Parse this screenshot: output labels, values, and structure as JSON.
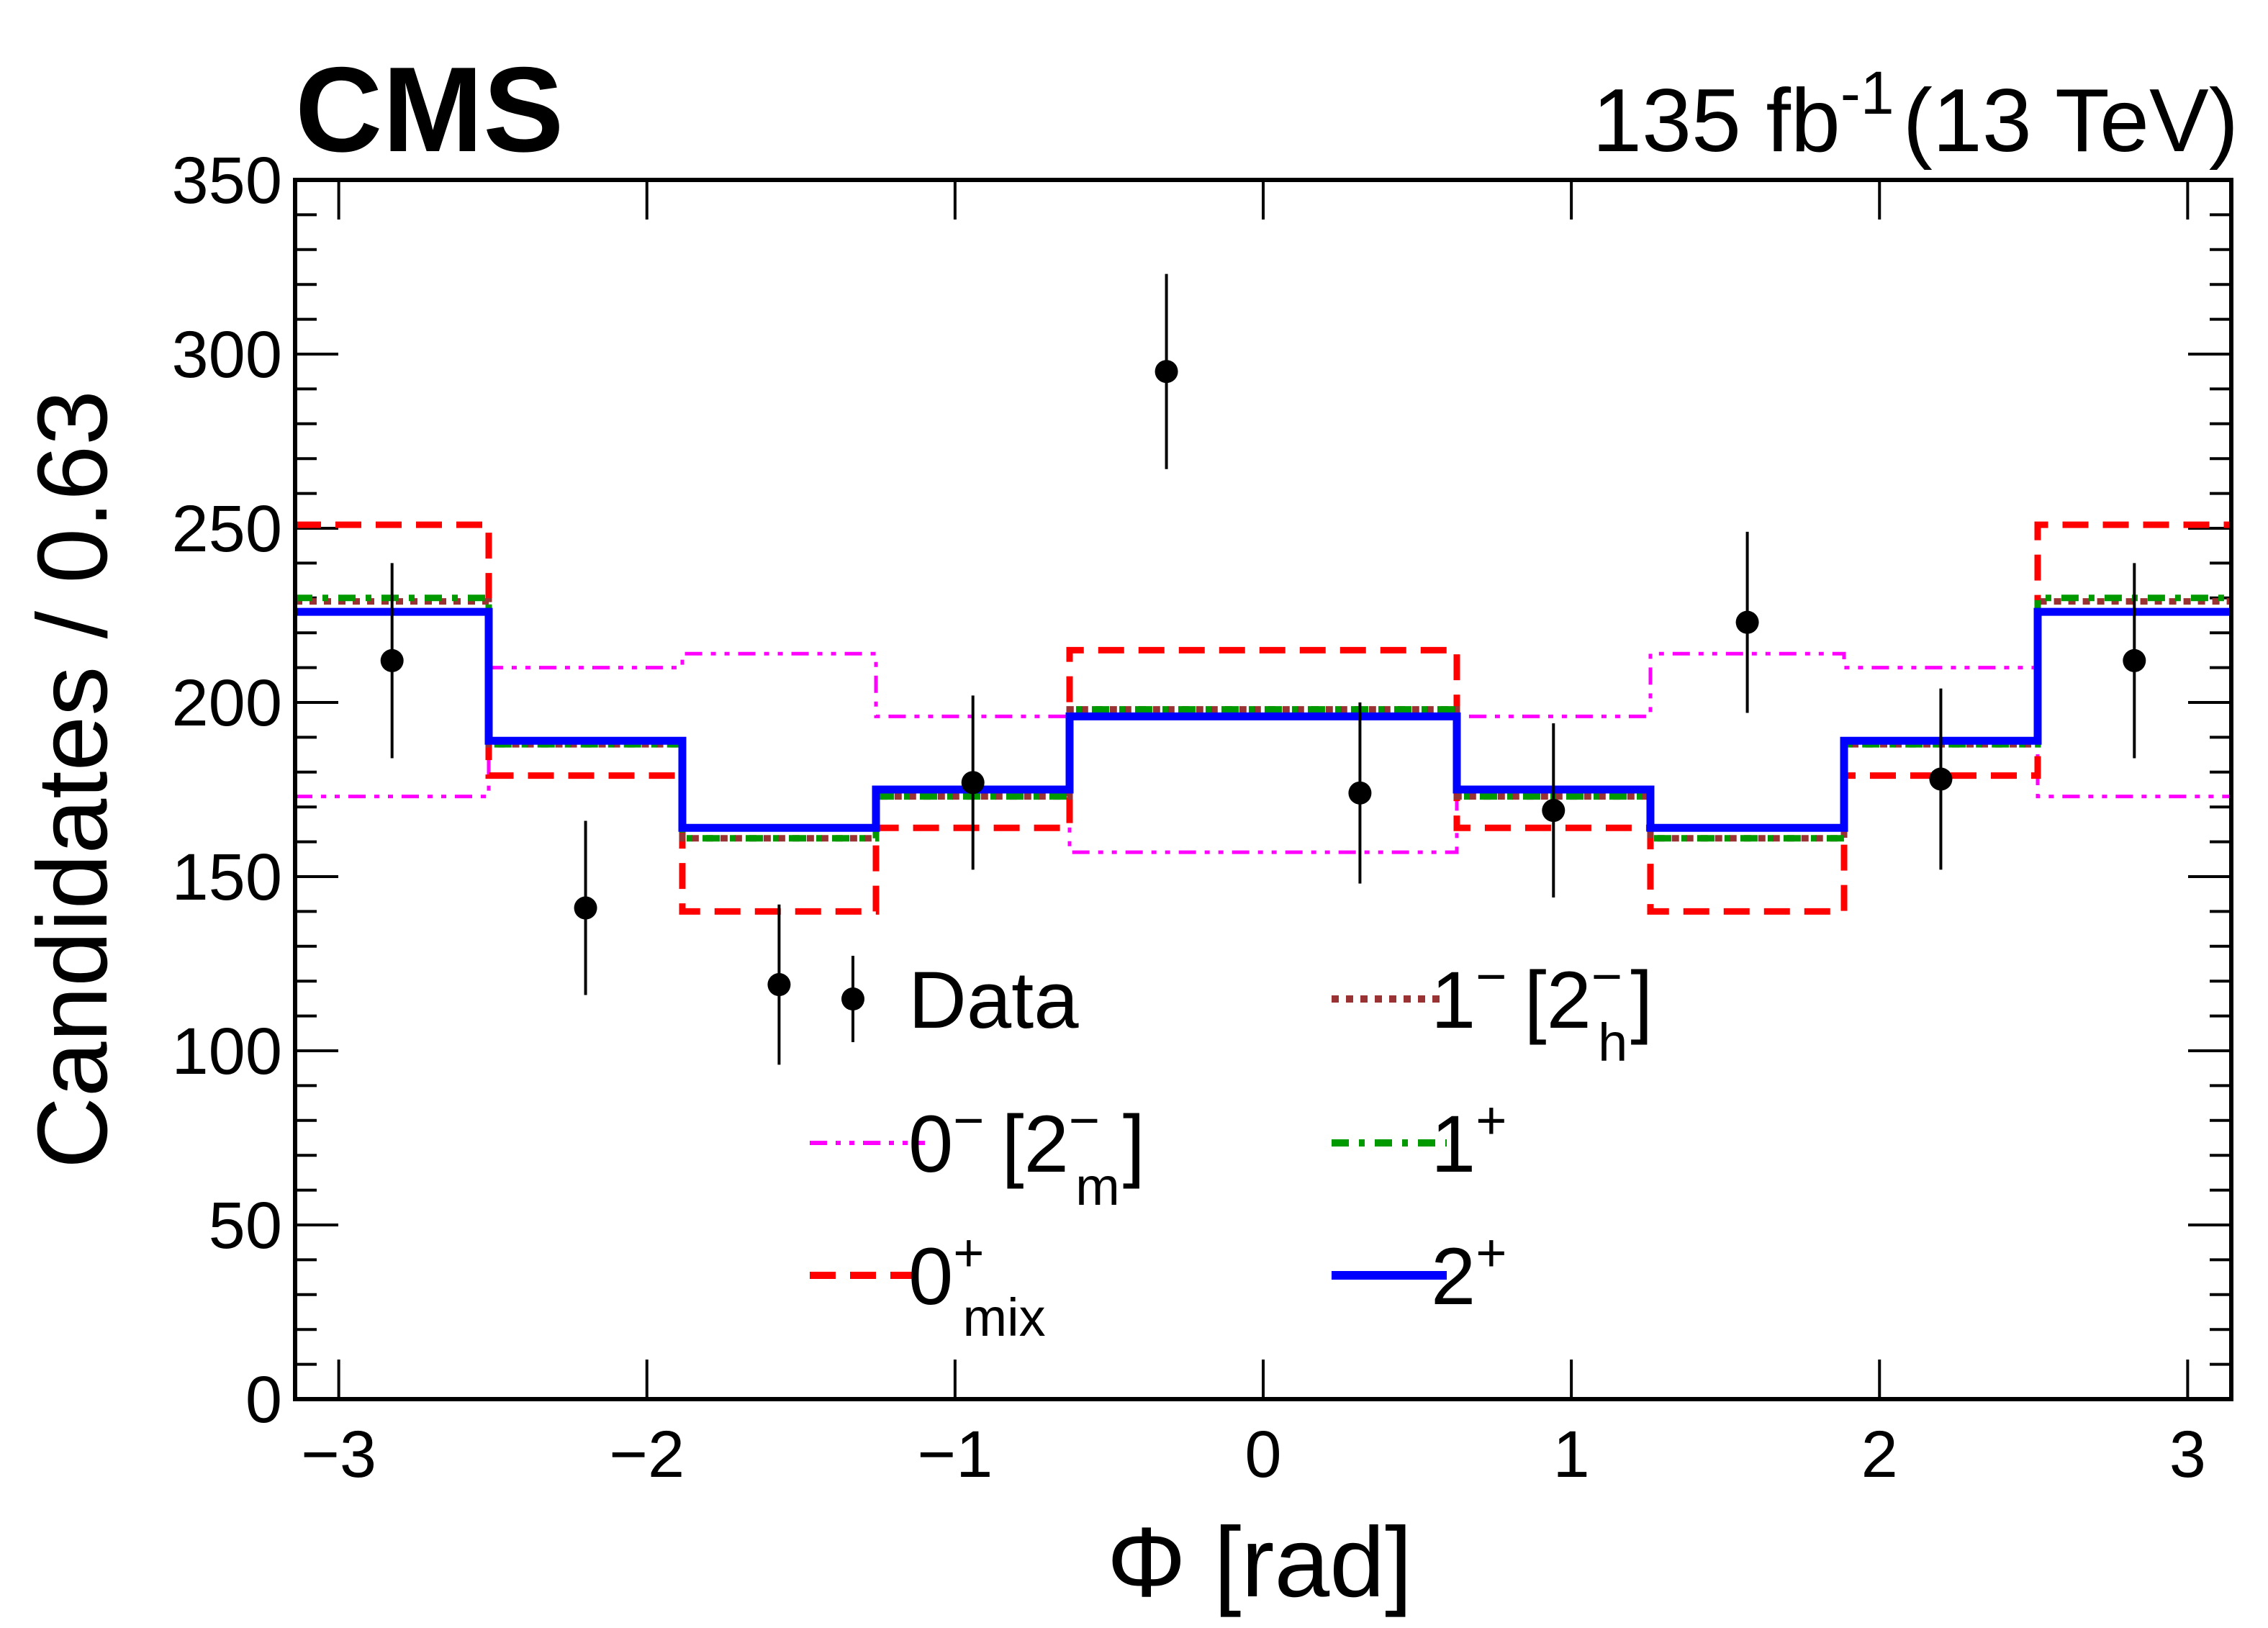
{
  "chart_data": {
    "type": "line",
    "header": {
      "experiment": "CMS",
      "lumi_value": "135 fb",
      "lumi_exp": "-1",
      "energy": "(13 TeV)"
    },
    "xlabel": "Φ [rad]",
    "ylabel": "Candidates / 0.63",
    "xlim": [
      -3.1416,
      3.1416
    ],
    "ylim": [
      0,
      350
    ],
    "x_ticks": [
      -3,
      -2,
      -1,
      0,
      1,
      2,
      3
    ],
    "x_tick_labels": [
      "−3",
      "−2",
      "−1",
      "0",
      "1",
      "2",
      "3"
    ],
    "y_ticks": [
      0,
      50,
      100,
      150,
      200,
      250,
      300,
      350
    ],
    "y_tick_labels": [
      "0",
      "50",
      "100",
      "150",
      "200",
      "250",
      "300",
      "350"
    ],
    "bin_edges": [
      -3.1416,
      -2.5133,
      -1.885,
      -1.2566,
      -0.6283,
      0.0,
      0.6283,
      1.2566,
      1.885,
      2.5133,
      3.1416
    ],
    "data": {
      "name": "Data",
      "x": [
        -2.827,
        -2.199,
        -1.571,
        -0.942,
        -0.314,
        0.314,
        0.942,
        1.571,
        2.199,
        2.827
      ],
      "y": [
        212,
        141,
        119,
        177,
        295,
        174,
        169,
        223,
        178,
        212
      ],
      "err": [
        28,
        25,
        23,
        25,
        28,
        26,
        25,
        26,
        26,
        28
      ]
    },
    "series": [
      {
        "name": "0⁻ [2⁻m]",
        "label_main": "0",
        "label_sup": "−",
        "label_bracket_open": "[2",
        "label_bracket_sup": "−",
        "label_bracket_sub": "m",
        "label_bracket_close": "]",
        "style": "dash-dot-dot",
        "color": "#ff00ff",
        "values": [
          173,
          210,
          214,
          196,
          157,
          157,
          196,
          214,
          210,
          173
        ]
      },
      {
        "name": "0⁺mix",
        "label_main": "0",
        "label_sup": "+",
        "label_sub": "mix",
        "style": "dashed",
        "color": "#ff0000",
        "values": [
          251,
          179,
          140,
          164,
          215,
          215,
          164,
          140,
          179,
          251
        ]
      },
      {
        "name": "1⁻ [2⁻h]",
        "label_main": "1",
        "label_sup": "−",
        "label_bracket_open": "[2",
        "label_bracket_sup": "−",
        "label_bracket_sub": "h",
        "label_bracket_close": "]",
        "style": "dotted",
        "color": "#993333",
        "values": [
          229,
          188,
          161,
          173,
          198,
          198,
          173,
          161,
          188,
          229
        ]
      },
      {
        "name": "1⁺",
        "label_main": "1",
        "label_sup": "+",
        "style": "dash-dot",
        "color": "#009900",
        "values": [
          230,
          188,
          161,
          173,
          198,
          198,
          173,
          161,
          188,
          230
        ]
      },
      {
        "name": "2⁺",
        "label_main": "2",
        "label_sup": "+",
        "style": "solid",
        "color": "#0000ff",
        "values": [
          226,
          189,
          164,
          175,
          196,
          196,
          175,
          164,
          189,
          226
        ]
      }
    ],
    "legend": {
      "placement": "lower-center",
      "data_label": "Data"
    },
    "grid": false
  }
}
